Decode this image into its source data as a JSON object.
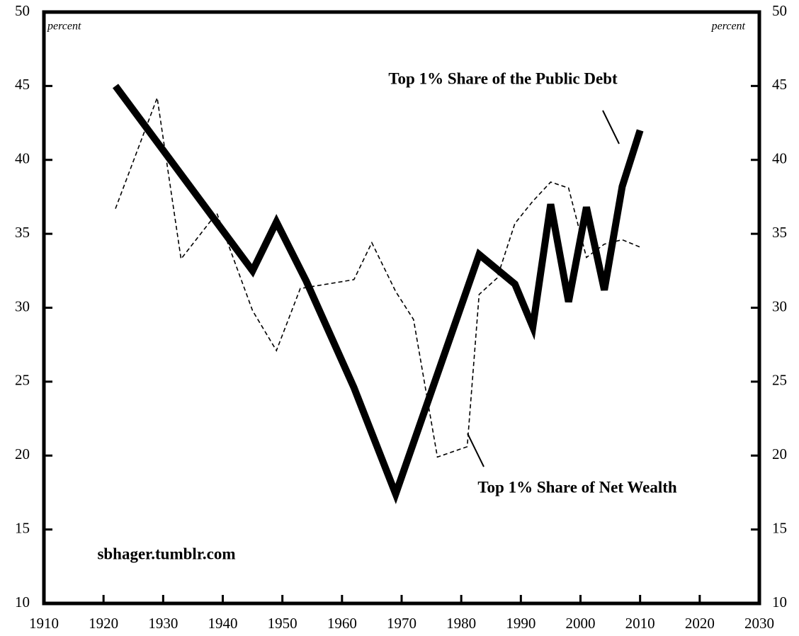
{
  "chart_data": {
    "type": "line",
    "annotations": [
      "Top 1% Share of the Public Debt",
      "Top 1% Share of Net Wealth",
      "sbhager.tumblr.com"
    ],
    "y_unit_left": "percent",
    "y_unit_right": "percent",
    "series": [
      {
        "name": "Top 1% Share of the Public Debt",
        "color": "#000000",
        "style": "solid",
        "x": [
          1922,
          1945,
          1949,
          1954,
          1962,
          1969,
          1983,
          1989,
          1992,
          1995,
          1998,
          2001,
          2004,
          2007,
          2010
        ],
        "values": [
          45.0,
          32.5,
          35.8,
          31.8,
          24.6,
          17.4,
          33.6,
          31.6,
          28.7,
          37.0,
          30.4,
          36.8,
          31.2,
          38.2,
          42.0
        ]
      },
      {
        "name": "Top 1% Share of Net Wealth",
        "color": "#000000",
        "style": "dashed",
        "x": [
          1922,
          1929,
          1933,
          1939,
          1945,
          1949,
          1953,
          1962,
          1965,
          1969,
          1972,
          1976,
          1981,
          1983,
          1986,
          1989,
          1992,
          1995,
          1998,
          2001,
          2004,
          2007,
          2010
        ],
        "values": [
          36.7,
          44.2,
          33.3,
          36.4,
          29.8,
          27.1,
          31.3,
          31.9,
          34.4,
          31.1,
          29.2,
          19.9,
          20.6,
          30.9,
          32.0,
          35.7,
          37.2,
          38.5,
          38.1,
          33.4,
          34.3,
          34.6,
          34.1
        ]
      }
    ],
    "xlim": [
      1910,
      2030
    ],
    "xticks": [
      1910,
      1920,
      1930,
      1940,
      1950,
      1960,
      1970,
      1980,
      1990,
      2000,
      2010,
      2020,
      2030
    ],
    "ylim": [
      10,
      50
    ],
    "yticks": [
      10,
      15,
      20,
      25,
      30,
      35,
      40,
      45,
      50
    ],
    "y2lim": [
      10,
      50
    ],
    "y2ticks": [
      10,
      15,
      20,
      25,
      30,
      35,
      40,
      45,
      50
    ],
    "grid": false
  }
}
